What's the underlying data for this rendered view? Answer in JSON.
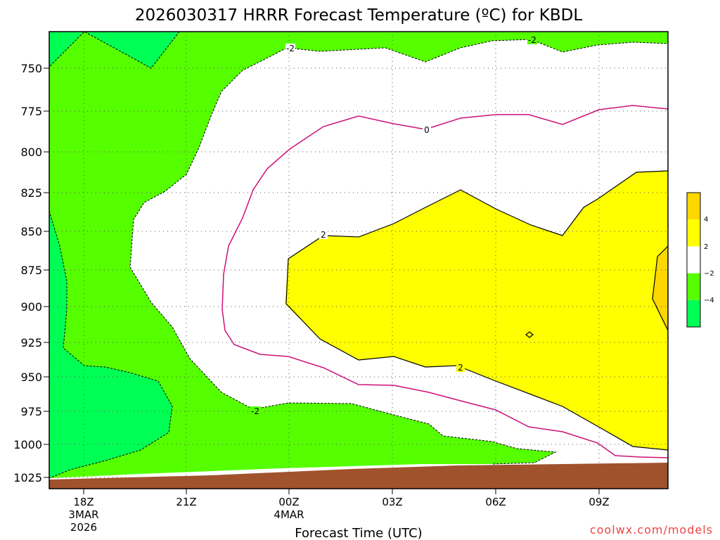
{
  "title": "2026030317 HRRR Forecast Temperature (ºC) for KBDL",
  "credit": "coolwx.com/models",
  "chart_data": {
    "type": "contour",
    "x_axis": {
      "label": "Forecast Time (UTC)",
      "ticks": [
        {
          "label": "18Z",
          "sub": [
            "3MAR",
            "2026"
          ]
        },
        {
          "label": "21Z",
          "sub": []
        },
        {
          "label": "00Z",
          "sub": [
            "4MAR"
          ]
        },
        {
          "label": "03Z",
          "sub": []
        },
        {
          "label": "06Z",
          "sub": []
        },
        {
          "label": "09Z",
          "sub": []
        }
      ]
    },
    "y_axis": {
      "ticks": [
        "750",
        "775",
        "800",
        "825",
        "850",
        "875",
        "900",
        "925",
        "950",
        "975",
        "1000",
        "1025"
      ]
    },
    "contour_labels": [
      "-2",
      "-2",
      "0",
      "2",
      "2",
      "-2"
    ],
    "colorbar": {
      "bands": [
        {
          "range": "> 4",
          "color": "#ffd700"
        },
        {
          "range": "2 to 4",
          "color": "#ffff00"
        },
        {
          "range": "-2 to 2",
          "color": "#ffffff"
        },
        {
          "range": "-4 to -2",
          "color": "#55ff00"
        },
        {
          "range": "< -4",
          "color": "#00ff55"
        }
      ],
      "tick_labels": [
        "4",
        "2",
        "−2",
        "−4"
      ]
    },
    "colors": {
      "very_cold": "#00ff55",
      "cold": "#55ff00",
      "neutral": "#ffffff",
      "warm": "#ffff00",
      "warmest": "#ffd700",
      "ground": "#a0522d",
      "zero_line": "#cc1177"
    }
  }
}
